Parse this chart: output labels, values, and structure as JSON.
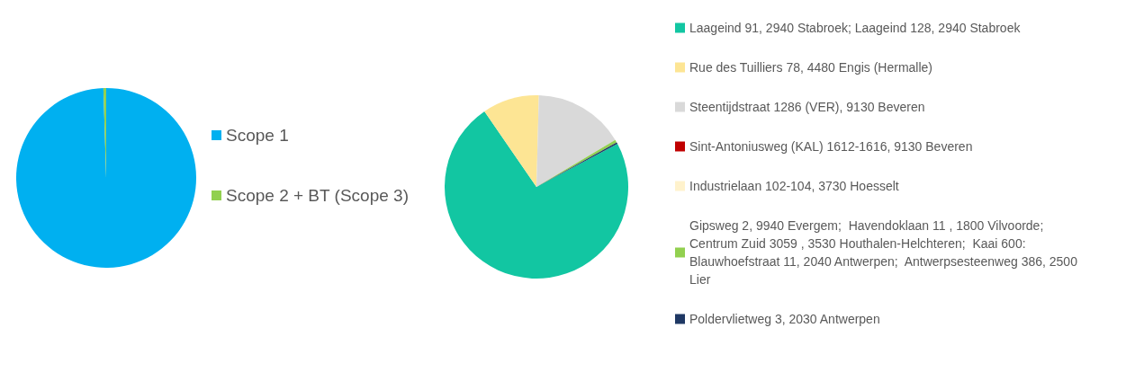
{
  "chart_data": [
    {
      "type": "pie",
      "categories": [
        "Scope 1",
        "Scope 2 + BT (Scope 3)"
      ],
      "values": [
        99.5,
        0.5
      ],
      "colors": [
        "#00b0f0",
        "#92d050"
      ],
      "legend": "right"
    },
    {
      "type": "pie",
      "categories": [
        "Laageind 91, 2940 Stabroek; Laageind 128, 2940 Stabroek",
        "Rue des Tuilliers 78, 4480 Engis (Hermalle)",
        "Steentijdstraat 1286 (VER), 9130 Beveren",
        "Sint-Antoniusweg (KAL) 1612-1616, 9130 Beveren",
        "Industrielaan 102-104, 3730 Hoesselt",
        "Gipsweg 2, 9940 Evergem;  Havendoklaan 11 , 1800 Vilvoorde;  Centrum Zuid 3059 , 3530 Houthalen-Helchteren;  Kaai 600: Blauwhoefstraat 11, 2040 Antwerpen;  Antwerpsesteenweg 386, 2500 Lier",
        "Poldervlietweg 3, 2030 Antwerpen"
      ],
      "values": [
        73.2,
        10,
        16,
        0,
        0,
        0.5,
        0.3
      ],
      "colors": [
        "#12c6a2",
        "#fde594",
        "#d9d9d9",
        "#c00000",
        "#fff2cc",
        "#92d050",
        "#1f3864"
      ],
      "legend": "right"
    }
  ]
}
